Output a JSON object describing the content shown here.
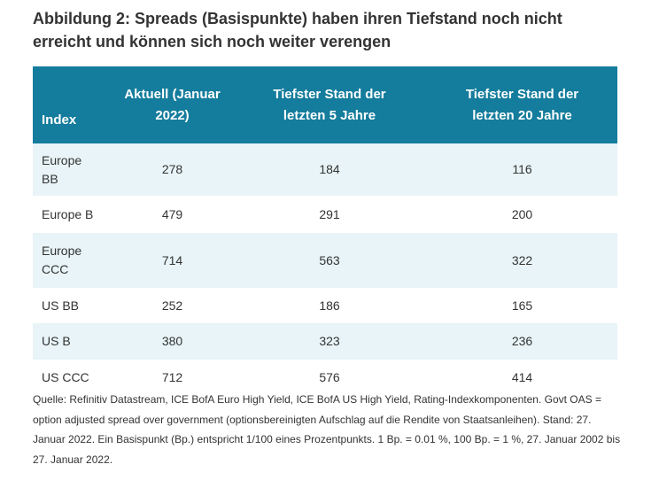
{
  "header": {
    "title": "Abbildung 2: Spreads (Basispunkte) haben ihren Tiefstand noch nicht erreicht und können sich noch weiter verengen"
  },
  "table": {
    "columns": [
      "Index",
      "Aktuell (Januar 2022)",
      "Tiefster Stand der letzten 5 Jahre",
      "Tiefster Stand der letzten 20 Jahre"
    ],
    "rows": [
      [
        "Europe BB",
        278,
        184,
        116
      ],
      [
        "Europe B",
        479,
        291,
        200
      ],
      [
        "Europe CCC",
        714,
        563,
        322
      ],
      [
        "US BB",
        252,
        186,
        165
      ],
      [
        "US B",
        380,
        323,
        236
      ],
      [
        "US CCC",
        712,
        576,
        414
      ]
    ]
  },
  "footnote": "Quelle: Refinitiv Datastream, ICE BofA Euro High Yield, ICE BofA US High Yield, Rating-Indexkomponenten. Govt OAS = option adjusted spread over government (optionsbereinigten Aufschlag auf die Rendite von Staatsanleihen). Stand: 27. Januar 2022. Ein Basispunkt (Bp.) entspricht 1/100 eines Prozentpunkts. 1 Bp. = 0.01 %, 100 Bp. = 1 %, 27. Januar 2002 bis 27. Januar 2022."
}
